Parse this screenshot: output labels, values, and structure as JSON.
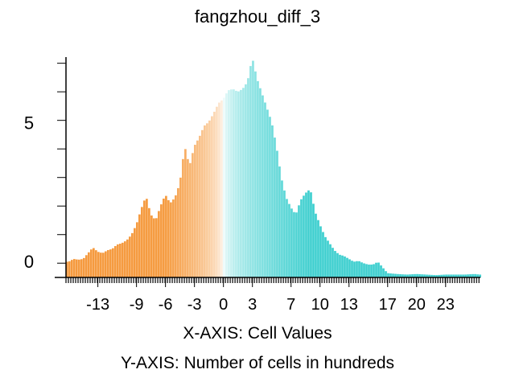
{
  "chart_data": {
    "type": "bar",
    "title": "fangzhou_diff_3",
    "xlabel": "X-AXIS: Cell Values",
    "ylabel": "Y-AXIS: Number of cells in hundreds",
    "x_ticks": [
      -13,
      -9,
      -6,
      -3,
      0,
      3,
      7,
      10,
      13,
      17,
      20,
      23
    ],
    "y_ticks": [
      0,
      5
    ],
    "xlim": [
      -16.3,
      26.6
    ],
    "ylim": [
      0,
      7.8
    ],
    "bin_width": 0.25,
    "colors": {
      "negative": "#f59a3e",
      "zero": "#ffffff",
      "positive": "#3ecfcf"
    },
    "x": [
      -16.0,
      -15.5,
      -15.0,
      -14.5,
      -14.0,
      -13.5,
      -13.0,
      -12.5,
      -12.0,
      -11.5,
      -11.0,
      -10.5,
      -10.0,
      -9.5,
      -9.0,
      -8.5,
      -8.0,
      -7.5,
      -7.0,
      -6.5,
      -6.0,
      -5.5,
      -5.0,
      -4.5,
      -4.0,
      -3.5,
      -3.0,
      -2.5,
      -2.0,
      -1.5,
      -1.0,
      -0.5,
      0.0,
      0.5,
      1.0,
      1.5,
      2.0,
      2.5,
      3.0,
      3.5,
      4.0,
      4.5,
      5.0,
      5.5,
      6.0,
      6.5,
      7.0,
      7.5,
      8.0,
      8.5,
      9.0,
      9.5,
      10.0,
      10.5,
      11.0,
      11.5,
      12.0,
      12.5,
      13.0,
      13.5,
      14.0,
      14.5,
      15.0,
      15.5,
      16.0,
      16.5,
      17.0,
      18.0,
      19.0,
      20.0,
      21.0,
      22.0,
      23.0,
      24.0,
      25.0,
      26.0,
      26.5
    ],
    "values": [
      0.55,
      0.65,
      0.62,
      0.65,
      0.85,
      1.05,
      0.9,
      0.85,
      0.95,
      1.0,
      1.15,
      1.2,
      1.3,
      1.5,
      1.85,
      2.4,
      2.85,
      2.2,
      2.0,
      2.5,
      2.9,
      2.6,
      2.8,
      3.3,
      4.6,
      3.9,
      4.6,
      4.9,
      5.3,
      5.45,
      5.75,
      6.1,
      6.25,
      6.55,
      6.6,
      6.5,
      6.6,
      6.85,
      7.7,
      6.95,
      6.45,
      5.95,
      5.45,
      4.6,
      3.5,
      2.8,
      2.45,
      2.2,
      2.7,
      2.95,
      3.1,
      2.3,
      1.85,
      1.45,
      1.2,
      0.95,
      0.8,
      0.75,
      0.65,
      0.55,
      0.58,
      0.5,
      0.45,
      0.45,
      0.55,
      0.35,
      0.15,
      0.12,
      0.1,
      0.12,
      0.1,
      0.08,
      0.1,
      0.1,
      0.1,
      0.12,
      0.1
    ],
    "grid": false,
    "legend": "none"
  }
}
